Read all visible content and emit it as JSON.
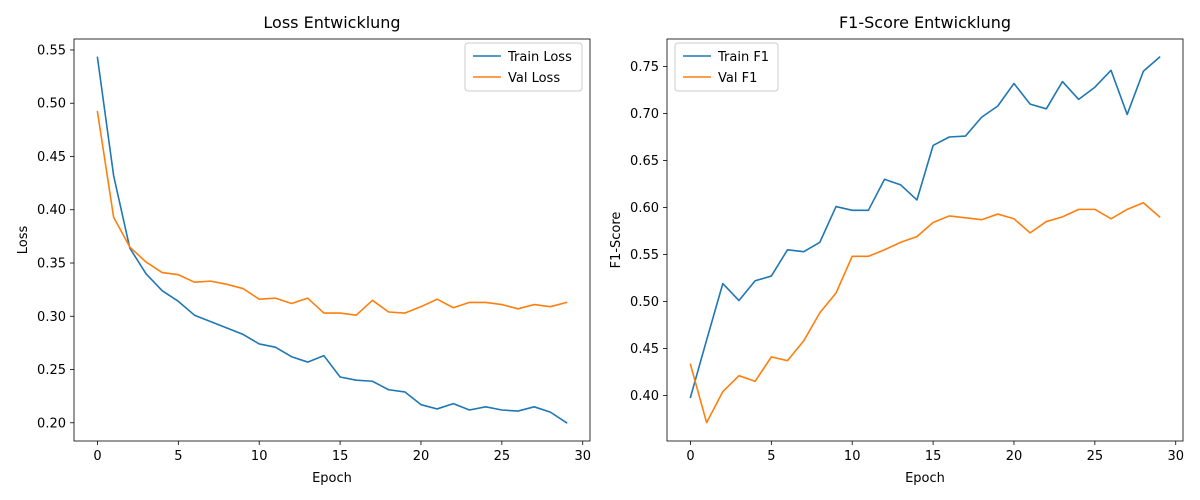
{
  "figure": {
    "background": "#ffffff"
  },
  "chart_data": [
    {
      "type": "line",
      "title": "Loss Entwicklung",
      "xlabel": "Epoch",
      "ylabel": "Loss",
      "xlim": [
        -1.45,
        30.45
      ],
      "ylim": [
        0.1829,
        0.5603
      ],
      "xticks": [
        0,
        5,
        10,
        15,
        20,
        25,
        30
      ],
      "yticks": [
        0.2,
        0.25,
        0.3,
        0.35,
        0.4,
        0.45,
        0.5,
        0.55
      ],
      "ytick_decimals": 2,
      "grid": false,
      "legend": "top-right",
      "x": [
        0,
        1,
        2,
        3,
        4,
        5,
        6,
        7,
        8,
        9,
        10,
        11,
        12,
        13,
        14,
        15,
        16,
        17,
        18,
        19,
        20,
        21,
        22,
        23,
        24,
        25,
        26,
        27,
        28,
        29
      ],
      "series": [
        {
          "name": "Train Loss",
          "color": "#1f77b4",
          "values": [
            0.543,
            0.432,
            0.364,
            0.34,
            0.324,
            0.314,
            0.301,
            0.295,
            0.289,
            0.283,
            0.274,
            0.271,
            0.262,
            0.257,
            0.263,
            0.243,
            0.24,
            0.239,
            0.231,
            0.229,
            0.217,
            0.213,
            0.218,
            0.212,
            0.215,
            0.212,
            0.211,
            0.215,
            0.21,
            0.2
          ]
        },
        {
          "name": "Val Loss",
          "color": "#ff7f0e",
          "values": [
            0.492,
            0.393,
            0.365,
            0.351,
            0.341,
            0.339,
            0.332,
            0.333,
            0.33,
            0.326,
            0.316,
            0.317,
            0.312,
            0.317,
            0.303,
            0.303,
            0.301,
            0.315,
            0.304,
            0.303,
            0.309,
            0.316,
            0.308,
            0.313,
            0.313,
            0.311,
            0.307,
            0.311,
            0.309,
            0.313
          ]
        }
      ]
    },
    {
      "type": "line",
      "title": "F1-Score Entwicklung",
      "xlabel": "Epoch",
      "ylabel": "F1-Score",
      "xlim": [
        -1.45,
        30.45
      ],
      "ylim": [
        0.3515,
        0.7793
      ],
      "xticks": [
        0,
        5,
        10,
        15,
        20,
        25,
        30
      ],
      "yticks": [
        0.4,
        0.45,
        0.5,
        0.55,
        0.6,
        0.65,
        0.7,
        0.75
      ],
      "ytick_decimals": 2,
      "grid": false,
      "legend": "top-left",
      "x": [
        0,
        1,
        2,
        3,
        4,
        5,
        6,
        7,
        8,
        9,
        10,
        11,
        12,
        13,
        14,
        15,
        16,
        17,
        18,
        19,
        20,
        21,
        22,
        23,
        24,
        25,
        26,
        27,
        28,
        29
      ],
      "series": [
        {
          "name": "Train F1",
          "color": "#1f77b4",
          "values": [
            0.398,
            0.459,
            0.519,
            0.501,
            0.522,
            0.527,
            0.555,
            0.553,
            0.563,
            0.601,
            0.597,
            0.597,
            0.63,
            0.624,
            0.608,
            0.666,
            0.675,
            0.676,
            0.696,
            0.708,
            0.732,
            0.71,
            0.705,
            0.734,
            0.715,
            0.728,
            0.746,
            0.699,
            0.745,
            0.76
          ]
        },
        {
          "name": "Val F1",
          "color": "#ff7f0e",
          "values": [
            0.433,
            0.371,
            0.404,
            0.421,
            0.415,
            0.441,
            0.437,
            0.458,
            0.488,
            0.509,
            0.548,
            0.548,
            0.555,
            0.563,
            0.569,
            0.584,
            0.591,
            0.589,
            0.587,
            0.593,
            0.588,
            0.573,
            0.585,
            0.59,
            0.598,
            0.598,
            0.588,
            0.598,
            0.605,
            0.59
          ]
        }
      ]
    }
  ]
}
